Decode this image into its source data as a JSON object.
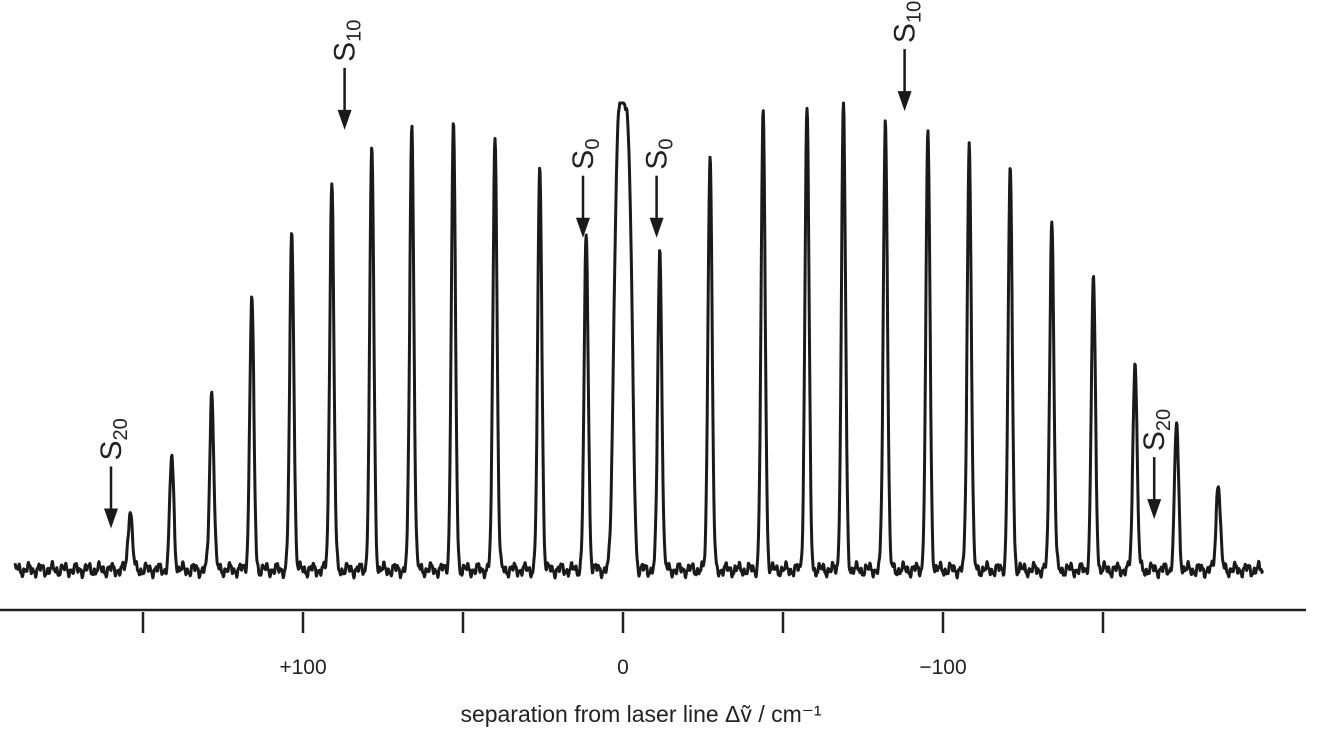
{
  "chart_data": {
    "type": "line",
    "title": "",
    "xlabel": "separation from laser line  Δṽ / cm⁻¹",
    "ylabel": "",
    "x_reversed": true,
    "xlim": [
      190,
      -200
    ],
    "ylim": [
      0,
      1.0
    ],
    "x_ticks": [
      {
        "value": 150,
        "label": ""
      },
      {
        "value": 100,
        "label": "+100"
      },
      {
        "value": 50,
        "label": ""
      },
      {
        "value": 0,
        "label": "0"
      },
      {
        "value": -50,
        "label": ""
      },
      {
        "value": -100,
        "label": "−100"
      },
      {
        "value": -150,
        "label": ""
      }
    ],
    "grid": false,
    "series": [
      {
        "name": "",
        "rayleigh_peak": {
          "x": 0,
          "y": 1.0
        },
        "stokes_lines_x": [
          -11.5,
          -27.2,
          -43.8,
          -57.5,
          -68.9,
          -82.0,
          -95.3,
          -108.2,
          -121.0,
          -134.0,
          -147.0,
          -160.0,
          -173.0,
          -186.0
        ],
        "stokes_lines_y": [
          0.68,
          0.89,
          0.97,
          0.99,
          0.99,
          0.96,
          0.93,
          0.91,
          0.85,
          0.75,
          0.62,
          0.45,
          0.31,
          0.19
        ],
        "antistokes_lines_x": [
          11.5,
          26.0,
          40.0,
          53.0,
          66.0,
          78.5,
          91.0,
          103.5,
          116.0,
          128.5,
          141.0,
          154.0
        ],
        "antistokes_lines_y": [
          0.71,
          0.86,
          0.93,
          0.95,
          0.95,
          0.9,
          0.83,
          0.72,
          0.58,
          0.38,
          0.24,
          0.13
        ]
      }
    ],
    "annotations": [
      {
        "label": "S",
        "subscript": "20",
        "x": 160,
        "y": 0.08
      },
      {
        "label": "S",
        "subscript": "10",
        "x": 87,
        "y": 0.93
      },
      {
        "label": "S",
        "subscript": "0",
        "x": 12.5,
        "y": 0.7
      },
      {
        "label": "S",
        "subscript": "0",
        "x": -10.5,
        "y": 0.7
      },
      {
        "label": "S",
        "subscript": "10",
        "x": -88,
        "y": 0.97
      },
      {
        "label": "S",
        "subscript": "20",
        "x": -166,
        "y": 0.1
      }
    ]
  }
}
